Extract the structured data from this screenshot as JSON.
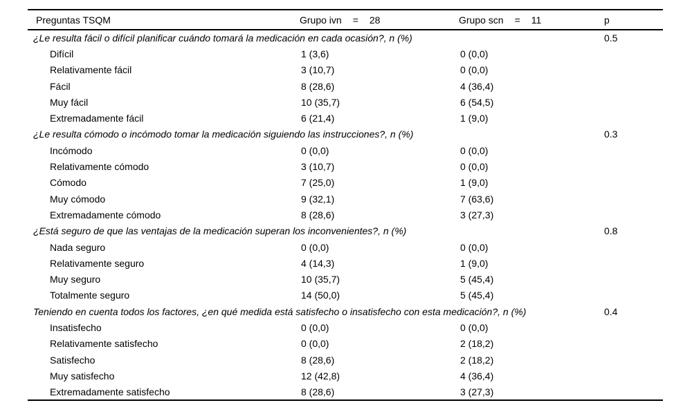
{
  "colors": {
    "background": "#ffffff",
    "text": "#000000",
    "rule": "#000000"
  },
  "table": {
    "header": {
      "questions_col": "Preguntas TSQM",
      "group1": {
        "label": "Grupo ivn",
        "eq": "=",
        "n": "28"
      },
      "group2": {
        "label": "Grupo scn",
        "eq": "=",
        "n": "11"
      },
      "p": "p"
    },
    "sections": [
      {
        "question": "¿Le resulta fácil o difícil planificar cuándo tomará la medicación en cada ocasión?, n (%)",
        "p": "0.5",
        "rows": [
          {
            "label": "Difícil",
            "ivn": "1 (3,6)",
            "scn": "0 (0,0)"
          },
          {
            "label": "Relativamente fácil",
            "ivn": "3 (10,7)",
            "scn": "0 (0,0)"
          },
          {
            "label": "Fácil",
            "ivn": "8 (28,6)",
            "scn": "4 (36,4)"
          },
          {
            "label": "Muy fácil",
            "ivn": "10 (35,7)",
            "scn": "6 (54,5)"
          },
          {
            "label": "Extremadamente fácil",
            "ivn": "6 (21,4)",
            "scn": "1 (9,0)"
          }
        ]
      },
      {
        "question": "¿Le resulta cómodo o incómodo tomar la medicación siguiendo las instrucciones?, n (%)",
        "p": "0.3",
        "rows": [
          {
            "label": "Incómodo",
            "ivn": "0 (0,0)",
            "scn": "0 (0,0)"
          },
          {
            "label": "Relativamente cómodo",
            "ivn": "3 (10,7)",
            "scn": "0 (0,0)"
          },
          {
            "label": "Cómodo",
            "ivn": "7 (25,0)",
            "scn": "1 (9,0)"
          },
          {
            "label": "Muy cómodo",
            "ivn": "9 (32,1)",
            "scn": "7 (63,6)"
          },
          {
            "label": "Extremadamente cómodo",
            "ivn": "8 (28,6)",
            "scn": "3 (27,3)"
          }
        ]
      },
      {
        "question": "¿Está seguro de que las ventajas de la medicación superan los inconvenientes?, n (%)",
        "p": "0.8",
        "rows": [
          {
            "label": "Nada seguro",
            "ivn": "0 (0,0)",
            "scn": "0 (0,0)"
          },
          {
            "label": "Relativamente seguro",
            "ivn": "4 (14,3)",
            "scn": "1 (9,0)"
          },
          {
            "label": "Muy seguro",
            "ivn": "10 (35,7)",
            "scn": "5 (45,4)"
          },
          {
            "label": "Totalmente seguro",
            "ivn": "14 (50,0)",
            "scn": "5 (45,4)"
          }
        ]
      },
      {
        "question": "Teniendo en cuenta todos los factores, ¿en qué medida está satisfecho o insatisfecho con esta medicación?, n (%)",
        "p": "0.4",
        "rows": [
          {
            "label": "Insatisfecho",
            "ivn": "0 (0,0)",
            "scn": "0 (0,0)"
          },
          {
            "label": "Relativamente satisfecho",
            "ivn": "0 (0,0)",
            "scn": "2 (18,2)"
          },
          {
            "label": "Satisfecho",
            "ivn": "8 (28,6)",
            "scn": "2 (18,2)"
          },
          {
            "label": "Muy satisfecho",
            "ivn": "12 (42,8)",
            "scn": "4 (36,4)"
          },
          {
            "label": "Extremadamente satisfecho",
            "ivn": "8 (28,6)",
            "scn": "3 (27,3)"
          }
        ]
      }
    ]
  }
}
